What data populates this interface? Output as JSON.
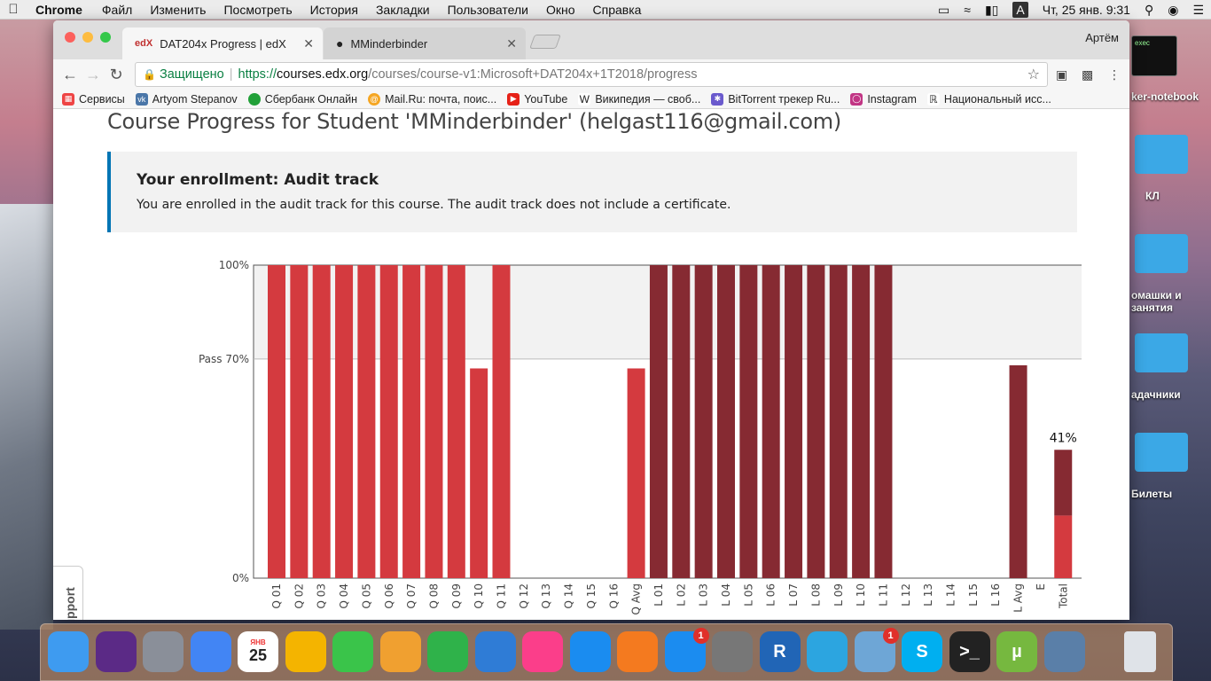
{
  "menubar": {
    "app": "Chrome",
    "items": [
      "Файл",
      "Изменить",
      "Посмотреть",
      "История",
      "Закладки",
      "Пользователи",
      "Окно",
      "Справка"
    ],
    "keyboard": "A",
    "clock": "Чт, 25 янв.  9:31"
  },
  "browser": {
    "tabs": [
      {
        "favicon": "edX",
        "title": "DAT204x Progress | edX"
      },
      {
        "favicon": "github-icon",
        "title": "MMinderbinder"
      }
    ],
    "profile": "Артём",
    "secure_label": "Защищено",
    "url_scheme": "https://",
    "url_host": "courses.edx.org",
    "url_path": "/courses/course-v1:Microsoft+DAT204x+1T2018/progress",
    "bookmarks": [
      {
        "icon": "apps-icon",
        "label": "Сервисы",
        "color": "#e44"
      },
      {
        "icon": "vk-icon",
        "label": "Artyom Stepanov",
        "color": "#4a76a8"
      },
      {
        "icon": "sberbank-icon",
        "label": "Сбербанк Онлайн",
        "color": "#21a038"
      },
      {
        "icon": "mailru-icon",
        "label": "Mail.Ru: почта, поис...",
        "color": "#f5a623"
      },
      {
        "icon": "youtube-icon",
        "label": "YouTube",
        "color": "#e62117"
      },
      {
        "icon": "wikipedia-icon",
        "label": "Википедия — своб...",
        "color": "#777"
      },
      {
        "icon": "bittorrent-icon",
        "label": "BitTorrent трекер Ru...",
        "color": "#6a5acd"
      },
      {
        "icon": "instagram-icon",
        "label": "Instagram",
        "color": "#c13584"
      },
      {
        "icon": "library-icon",
        "label": "Национальный исс...",
        "color": "#555"
      }
    ]
  },
  "page": {
    "heading": "Course Progress for Student 'MMinderbinder' (helgast116@gmail.com)",
    "enrollment_title": "Your enrollment: Audit track",
    "enrollment_text": "You are enrolled in the audit track for this course. The audit track does not include a certificate.",
    "support": "Support"
  },
  "chart_data": {
    "type": "bar",
    "ylim": [
      0,
      100
    ],
    "y_ticks": [
      {
        "value": 100,
        "label": "100%"
      },
      {
        "value": 70,
        "label": "Pass 70%"
      },
      {
        "value": 0,
        "label": "0%"
      }
    ],
    "pass_threshold": 70,
    "categories": [
      "Q 01",
      "Q 02",
      "Q 03",
      "Q 04",
      "Q 05",
      "Q 06",
      "Q 07",
      "Q 08",
      "Q 09",
      "Q 10",
      "Q 11",
      "Q 12",
      "Q 13",
      "Q 14",
      "Q 15",
      "Q 16",
      "Q Avg",
      "L 01",
      "L 02",
      "L 03",
      "L 04",
      "L 05",
      "L 06",
      "L 07",
      "L 08",
      "L 09",
      "L 10",
      "L 11",
      "L 12",
      "L 13",
      "L 14",
      "L 15",
      "L 16",
      "L Avg",
      "E",
      "Total"
    ],
    "values": [
      100,
      100,
      100,
      100,
      100,
      100,
      100,
      100,
      100,
      67,
      100,
      0,
      0,
      0,
      0,
      0,
      67,
      100,
      100,
      100,
      100,
      100,
      100,
      100,
      100,
      100,
      100,
      100,
      0,
      0,
      0,
      0,
      0,
      68,
      0,
      41
    ],
    "total_label": "41%",
    "total_breakdown": [
      20,
      21
    ],
    "colors": {
      "quiz": "#d43a3f",
      "lab": "#862a32",
      "band": "#f2f2f2"
    }
  },
  "desktop": {
    "exec_label": "exec",
    "notebook_label": "ker-notebook",
    "folders": [
      "КЛ",
      "омашки и занятия",
      "адачники",
      "Билеты"
    ]
  },
  "dock": {
    "calendar_month": "ЯНВ",
    "calendar_day": "25",
    "items": [
      {
        "name": "finder-icon",
        "color": "#3e9bf0"
      },
      {
        "name": "siri-icon",
        "color": "#5b2a86"
      },
      {
        "name": "launchpad-icon",
        "color": "#8a8f99"
      },
      {
        "name": "chrome-icon",
        "color": "#4285f4"
      },
      {
        "name": "calendar-icon",
        "color": "#ffffff"
      },
      {
        "name": "photos-icon",
        "color": "#f4b400"
      },
      {
        "name": "facetime-icon",
        "color": "#3ac44a"
      },
      {
        "name": "pages-icon",
        "color": "#f0a030"
      },
      {
        "name": "numbers-icon",
        "color": "#2fb24a"
      },
      {
        "name": "keynote-icon",
        "color": "#2f7cd6"
      },
      {
        "name": "itunes-icon",
        "color": "#fb3e8a"
      },
      {
        "name": "safari-icon",
        "color": "#1a8cf0"
      },
      {
        "name": "ibooks-icon",
        "color": "#f47a1f"
      },
      {
        "name": "appstore-icon",
        "color": "#1b8cf0",
        "badge": "1"
      },
      {
        "name": "system-preferences-icon",
        "color": "#777"
      },
      {
        "name": "r-icon",
        "color": "#2165b6",
        "text": "R"
      },
      {
        "name": "telegram-icon",
        "color": "#2ca5e0"
      },
      {
        "name": "preview-icon",
        "color": "#6ea6d6",
        "badge": "1"
      },
      {
        "name": "skype-icon",
        "color": "#00aff0",
        "text": "S"
      },
      {
        "name": "terminal-icon",
        "color": "#222",
        "text": ">_"
      },
      {
        "name": "utorrent-icon",
        "color": "#76b83f",
        "text": "µ"
      },
      {
        "name": "iphoto-icon",
        "color": "#5a7fa8"
      },
      {
        "name": "trash-icon",
        "color": "#dfe3e8"
      }
    ]
  }
}
